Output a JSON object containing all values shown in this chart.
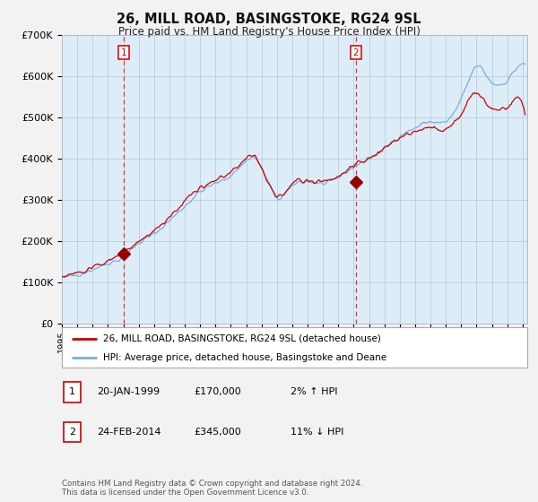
{
  "title": "26, MILL ROAD, BASINGSTOKE, RG24 9SL",
  "subtitle": "Price paid vs. HM Land Registry's House Price Index (HPI)",
  "background_color": "#f0f0f0",
  "plot_bg_color": "#ddeeff",
  "grid_color": "#bbccdd",
  "ylim": [
    0,
    700000
  ],
  "yticks": [
    0,
    100000,
    200000,
    300000,
    400000,
    500000,
    600000,
    700000
  ],
  "ytick_labels": [
    "£0",
    "£100K",
    "£200K",
    "£300K",
    "£400K",
    "£500K",
    "£600K",
    "£700K"
  ],
  "xlim_start": 1995.0,
  "xlim_end": 2025.3,
  "sale1_x": 1999.05,
  "sale1_y": 170000,
  "sale1_label": "1",
  "sale1_date": "20-JAN-1999",
  "sale1_price": "£170,000",
  "sale1_hpi": "2% ↑ HPI",
  "sale2_x": 2014.15,
  "sale2_y": 345000,
  "sale2_label": "2",
  "sale2_date": "24-FEB-2014",
  "sale2_price": "£345,000",
  "sale2_hpi": "11% ↓ HPI",
  "red_line_color": "#cc0000",
  "blue_line_color": "#7aaddc",
  "marker_color": "#990000",
  "vline_color": "#dd3333",
  "legend_label_red": "26, MILL ROAD, BASINGSTOKE, RG24 9SL (detached house)",
  "legend_label_blue": "HPI: Average price, detached house, Basingstoke and Deane",
  "footer": "Contains HM Land Registry data © Crown copyright and database right 2024.\nThis data is licensed under the Open Government Licence v3.0."
}
